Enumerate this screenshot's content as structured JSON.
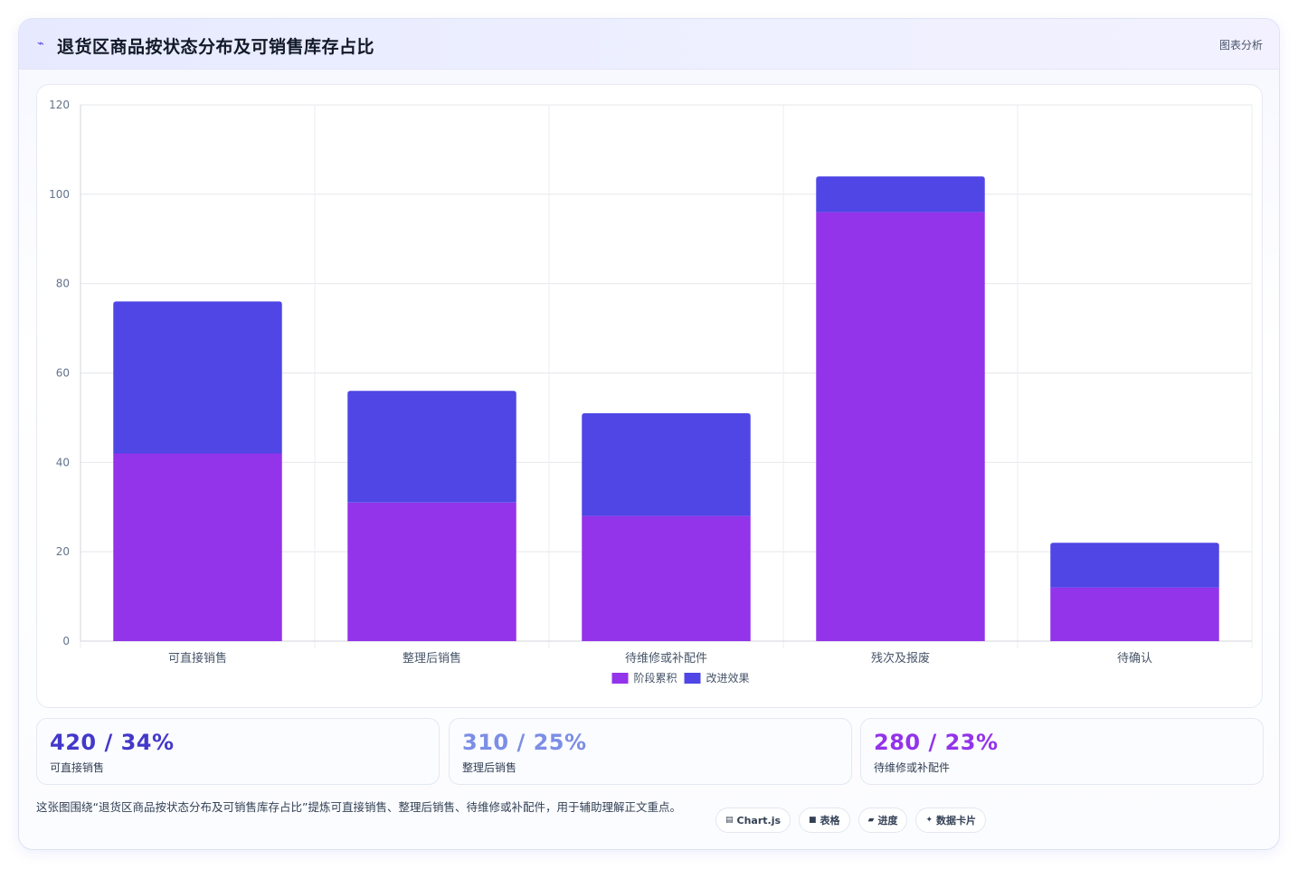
{
  "header": {
    "logo_glyph": "⌁",
    "title": "退货区商品按状态分布及可销售库存占比",
    "menu_label": "图表分析"
  },
  "chart_data": {
    "type": "bar",
    "stacked": true,
    "categories": [
      "可直接销售",
      "整理后销售",
      "待维修或补配件",
      "残次及报废",
      "待确认"
    ],
    "series": [
      {
        "name": "阶段累积",
        "values": [
          42,
          31,
          28,
          96,
          12
        ],
        "color": "#9333ea"
      },
      {
        "name": "改进效果",
        "values": [
          34,
          25,
          23,
          8,
          10
        ],
        "color": "#4f46e5"
      }
    ],
    "ylim": [
      0,
      120
    ],
    "yticks": [
      0,
      20,
      40,
      60,
      80,
      100,
      120
    ],
    "grid": true,
    "legend_position": "bottom"
  },
  "kpis": [
    {
      "value": "420 / 34%",
      "label": "可直接销售",
      "color": "#4338ca"
    },
    {
      "value": "310 / 25%",
      "label": "整理后销售",
      "color": "#7c8ee6"
    },
    {
      "value": "280 / 23%",
      "label": "待维修或补配件",
      "color": "#9333ea"
    }
  ],
  "footer": {
    "description": "这张图围绕“退货区商品按状态分布及可销售库存占比”提炼可直接销售、整理后销售、待维修或补配件，用于辅助理解正文重点。",
    "tags": [
      {
        "icon": "chart-icon",
        "glyph": "▤",
        "label": "Chart.js"
      },
      {
        "icon": "table-icon",
        "glyph": "■",
        "label": "表格"
      },
      {
        "icon": "progress-icon",
        "glyph": "▰",
        "label": "进度"
      },
      {
        "icon": "sparkle-icon",
        "glyph": "✦",
        "label": "数据卡片"
      }
    ]
  }
}
